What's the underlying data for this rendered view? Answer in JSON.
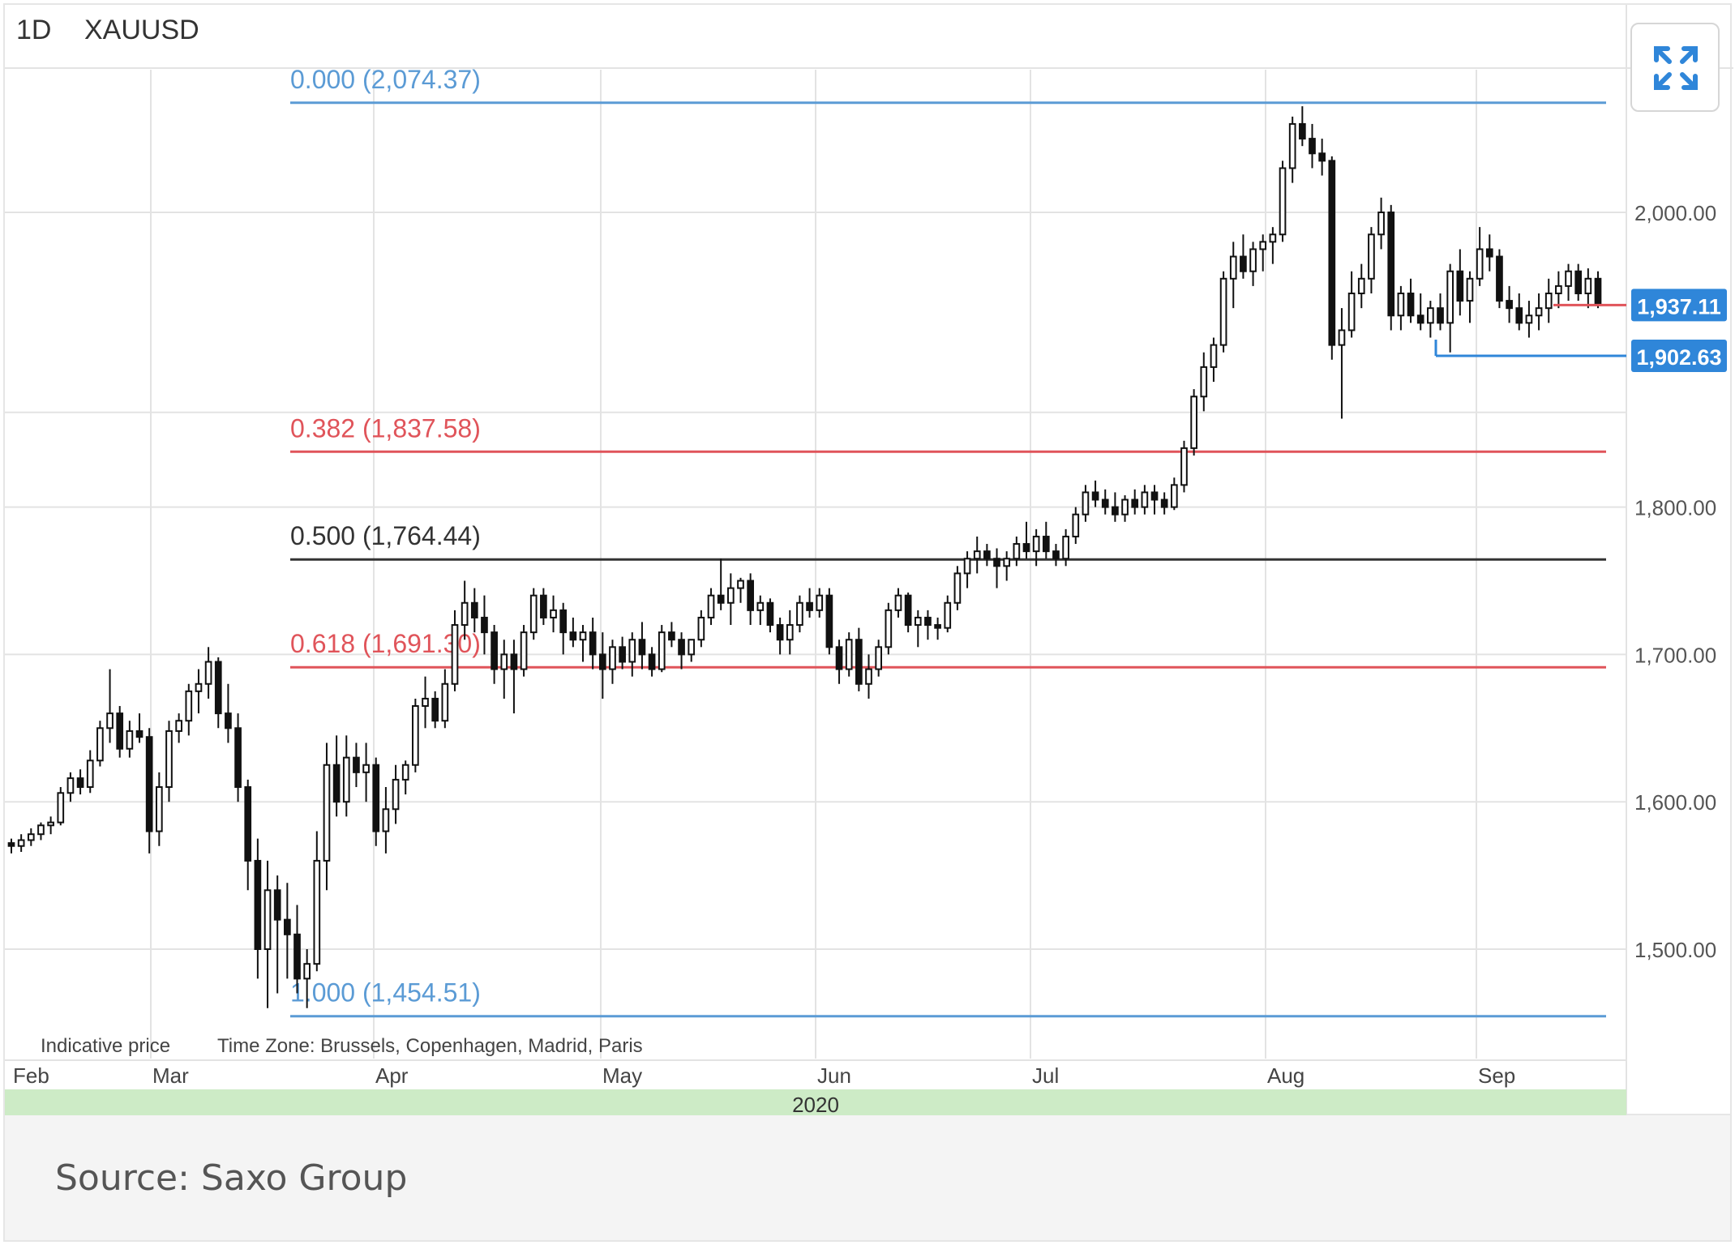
{
  "colors": {
    "grid": "#e3e3e3",
    "candle": "#111111",
    "fib_blue": "#5b9bd5",
    "fib_red": "#e0545a",
    "fib_black": "#333333",
    "badge_blue": "#2f86d9",
    "year_band": "#cdebc6",
    "expand_icon": "#2f86d9"
  },
  "header": {
    "timeframe": "1D",
    "symbol": "XAUUSD"
  },
  "expand_button": {
    "icon": "expand-arrows-icon"
  },
  "footnote": {
    "indicative": "Indicative price",
    "timezone": "Time Zone: Brussels, Copenhagen, Madrid, Paris"
  },
  "caption": "Source: Saxo Group",
  "chart_data": {
    "type": "candlestick",
    "symbol": "XAUUSD",
    "timeframe": "1D",
    "year_label": "2020",
    "x_tick_labels": [
      "Feb",
      "Mar",
      "Apr",
      "May",
      "Jun",
      "Jul",
      "Aug",
      "Sep"
    ],
    "y_tick_labels": [
      "2,000.00",
      "1,800.00",
      "1,700.00",
      "1,600.00",
      "1,500.00"
    ],
    "ylim": [
      1420,
      2100
    ],
    "grid": true,
    "fib_levels": [
      {
        "label": "0.000 (2,074.37)",
        "value": 2074.37,
        "color": "#5b9bd5"
      },
      {
        "label": "0.382 (1,837.58)",
        "value": 1837.58,
        "color": "#e0545a"
      },
      {
        "label": "0.500 (1,764.44)",
        "value": 1764.44,
        "color": "#333333"
      },
      {
        "label": "0.618 (1,691.30)",
        "value": 1691.3,
        "color": "#e0545a"
      },
      {
        "label": "1.000 (1,454.51)",
        "value": 1454.51,
        "color": "#5b9bd5"
      }
    ],
    "price_badges": [
      {
        "label": "1,937.11",
        "value": 1937.11,
        "color": "#2f86d9"
      },
      {
        "label": "1,902.63",
        "value": 1902.63,
        "color": "#2f86d9"
      }
    ],
    "ohlc": [
      [
        1572,
        1575,
        1565,
        1570
      ],
      [
        1570,
        1578,
        1566,
        1574
      ],
      [
        1574,
        1582,
        1570,
        1578
      ],
      [
        1578,
        1586,
        1574,
        1584
      ],
      [
        1584,
        1590,
        1578,
        1586
      ],
      [
        1586,
        1610,
        1584,
        1606
      ],
      [
        1606,
        1620,
        1600,
        1616
      ],
      [
        1616,
        1622,
        1605,
        1610
      ],
      [
        1610,
        1635,
        1606,
        1628
      ],
      [
        1628,
        1655,
        1624,
        1650
      ],
      [
        1650,
        1690,
        1640,
        1660
      ],
      [
        1660,
        1665,
        1630,
        1636
      ],
      [
        1636,
        1655,
        1630,
        1648
      ],
      [
        1648,
        1660,
        1640,
        1644
      ],
      [
        1644,
        1650,
        1565,
        1580
      ],
      [
        1580,
        1620,
        1570,
        1610
      ],
      [
        1610,
        1655,
        1600,
        1648
      ],
      [
        1648,
        1660,
        1640,
        1655
      ],
      [
        1655,
        1680,
        1645,
        1675
      ],
      [
        1675,
        1690,
        1660,
        1680
      ],
      [
        1680,
        1705,
        1670,
        1695
      ],
      [
        1695,
        1698,
        1650,
        1660
      ],
      [
        1660,
        1680,
        1640,
        1650
      ],
      [
        1650,
        1660,
        1600,
        1610
      ],
      [
        1610,
        1615,
        1540,
        1560
      ],
      [
        1560,
        1575,
        1480,
        1500
      ],
      [
        1500,
        1560,
        1460,
        1540
      ],
      [
        1540,
        1550,
        1470,
        1520
      ],
      [
        1520,
        1545,
        1480,
        1510
      ],
      [
        1510,
        1530,
        1470,
        1480
      ],
      [
        1480,
        1500,
        1460,
        1490
      ],
      [
        1490,
        1580,
        1485,
        1560
      ],
      [
        1560,
        1640,
        1540,
        1625
      ],
      [
        1625,
        1645,
        1590,
        1600
      ],
      [
        1600,
        1645,
        1590,
        1630
      ],
      [
        1630,
        1640,
        1610,
        1620
      ],
      [
        1620,
        1640,
        1600,
        1625
      ],
      [
        1625,
        1630,
        1570,
        1580
      ],
      [
        1580,
        1610,
        1565,
        1595
      ],
      [
        1595,
        1625,
        1585,
        1615
      ],
      [
        1615,
        1628,
        1605,
        1625
      ],
      [
        1625,
        1670,
        1620,
        1665
      ],
      [
        1665,
        1685,
        1650,
        1670
      ],
      [
        1670,
        1675,
        1650,
        1655
      ],
      [
        1655,
        1690,
        1650,
        1680
      ],
      [
        1680,
        1730,
        1675,
        1720
      ],
      [
        1720,
        1750,
        1710,
        1735
      ],
      [
        1735,
        1745,
        1715,
        1725
      ],
      [
        1725,
        1740,
        1700,
        1715
      ],
      [
        1715,
        1720,
        1680,
        1690
      ],
      [
        1690,
        1710,
        1670,
        1700
      ],
      [
        1700,
        1710,
        1660,
        1690
      ],
      [
        1690,
        1720,
        1685,
        1715
      ],
      [
        1715,
        1745,
        1710,
        1740
      ],
      [
        1740,
        1745,
        1720,
        1725
      ],
      [
        1725,
        1740,
        1715,
        1730
      ],
      [
        1730,
        1735,
        1700,
        1715
      ],
      [
        1715,
        1725,
        1705,
        1710
      ],
      [
        1710,
        1720,
        1695,
        1715
      ],
      [
        1715,
        1725,
        1690,
        1700
      ],
      [
        1700,
        1715,
        1670,
        1690
      ],
      [
        1690,
        1710,
        1680,
        1705
      ],
      [
        1705,
        1712,
        1690,
        1695
      ],
      [
        1695,
        1715,
        1685,
        1710
      ],
      [
        1710,
        1722,
        1690,
        1700
      ],
      [
        1700,
        1705,
        1685,
        1690
      ],
      [
        1690,
        1720,
        1688,
        1715
      ],
      [
        1715,
        1722,
        1705,
        1710
      ],
      [
        1710,
        1715,
        1690,
        1700
      ],
      [
        1700,
        1710,
        1695,
        1710
      ],
      [
        1710,
        1730,
        1705,
        1725
      ],
      [
        1725,
        1745,
        1720,
        1740
      ],
      [
        1740,
        1765,
        1730,
        1735
      ],
      [
        1735,
        1755,
        1720,
        1745
      ],
      [
        1745,
        1752,
        1735,
        1750
      ],
      [
        1750,
        1755,
        1720,
        1730
      ],
      [
        1730,
        1740,
        1720,
        1735
      ],
      [
        1735,
        1738,
        1715,
        1720
      ],
      [
        1720,
        1725,
        1700,
        1710
      ],
      [
        1710,
        1730,
        1700,
        1720
      ],
      [
        1720,
        1740,
        1715,
        1735
      ],
      [
        1735,
        1745,
        1725,
        1730
      ],
      [
        1730,
        1745,
        1725,
        1740
      ],
      [
        1740,
        1745,
        1700,
        1705
      ],
      [
        1705,
        1710,
        1680,
        1690
      ],
      [
        1690,
        1715,
        1685,
        1710
      ],
      [
        1710,
        1718,
        1675,
        1680
      ],
      [
        1680,
        1700,
        1670,
        1690
      ],
      [
        1690,
        1710,
        1685,
        1705
      ],
      [
        1705,
        1735,
        1700,
        1730
      ],
      [
        1730,
        1745,
        1725,
        1740
      ],
      [
        1740,
        1742,
        1715,
        1720
      ],
      [
        1720,
        1730,
        1705,
        1725
      ],
      [
        1725,
        1730,
        1710,
        1720
      ],
      [
        1720,
        1725,
        1710,
        1718
      ],
      [
        1718,
        1740,
        1715,
        1735
      ],
      [
        1735,
        1760,
        1730,
        1755
      ],
      [
        1755,
        1770,
        1745,
        1765
      ],
      [
        1765,
        1780,
        1755,
        1770
      ],
      [
        1770,
        1775,
        1760,
        1765
      ],
      [
        1765,
        1772,
        1745,
        1760
      ],
      [
        1760,
        1770,
        1750,
        1765
      ],
      [
        1765,
        1780,
        1760,
        1775
      ],
      [
        1775,
        1790,
        1765,
        1770
      ],
      [
        1770,
        1785,
        1760,
        1780
      ],
      [
        1780,
        1790,
        1765,
        1770
      ],
      [
        1770,
        1775,
        1760,
        1765
      ],
      [
        1765,
        1785,
        1760,
        1780
      ],
      [
        1780,
        1800,
        1775,
        1795
      ],
      [
        1795,
        1815,
        1790,
        1810
      ],
      [
        1810,
        1818,
        1800,
        1805
      ],
      [
        1805,
        1812,
        1795,
        1800
      ],
      [
        1800,
        1810,
        1790,
        1795
      ],
      [
        1795,
        1808,
        1790,
        1805
      ],
      [
        1805,
        1812,
        1795,
        1800
      ],
      [
        1800,
        1815,
        1795,
        1810
      ],
      [
        1810,
        1815,
        1795,
        1805
      ],
      [
        1805,
        1810,
        1795,
        1800
      ],
      [
        1800,
        1820,
        1798,
        1815
      ],
      [
        1815,
        1845,
        1810,
        1840
      ],
      [
        1840,
        1880,
        1835,
        1875
      ],
      [
        1875,
        1905,
        1865,
        1895
      ],
      [
        1895,
        1915,
        1885,
        1910
      ],
      [
        1910,
        1960,
        1905,
        1955
      ],
      [
        1955,
        1980,
        1935,
        1970
      ],
      [
        1970,
        1985,
        1955,
        1960
      ],
      [
        1960,
        1980,
        1950,
        1975
      ],
      [
        1975,
        1985,
        1960,
        1980
      ],
      [
        1980,
        1990,
        1965,
        1985
      ],
      [
        1985,
        2035,
        1980,
        2030
      ],
      [
        2030,
        2065,
        2020,
        2060
      ],
      [
        2060,
        2072,
        2045,
        2050
      ],
      [
        2050,
        2060,
        2030,
        2040
      ],
      [
        2040,
        2050,
        2025,
        2035
      ],
      [
        2035,
        2038,
        1900,
        1910
      ],
      [
        1910,
        1935,
        1860,
        1920
      ],
      [
        1920,
        1960,
        1915,
        1945
      ],
      [
        1945,
        1965,
        1935,
        1955
      ],
      [
        1955,
        1990,
        1945,
        1985
      ],
      [
        1985,
        2010,
        1975,
        2000
      ],
      [
        2000,
        2005,
        1920,
        1930
      ],
      [
        1930,
        1950,
        1920,
        1945
      ],
      [
        1945,
        1955,
        1925,
        1930
      ],
      [
        1930,
        1945,
        1920,
        1925
      ],
      [
        1925,
        1940,
        1915,
        1935
      ],
      [
        1935,
        1945,
        1920,
        1925
      ],
      [
        1925,
        1965,
        1905,
        1960
      ],
      [
        1960,
        1975,
        1930,
        1940
      ],
      [
        1940,
        1960,
        1925,
        1955
      ],
      [
        1955,
        1990,
        1950,
        1975
      ],
      [
        1975,
        1985,
        1960,
        1970
      ],
      [
        1970,
        1975,
        1935,
        1940
      ],
      [
        1940,
        1950,
        1925,
        1935
      ],
      [
        1935,
        1945,
        1920,
        1925
      ],
      [
        1925,
        1940,
        1915,
        1930
      ],
      [
        1930,
        1945,
        1920,
        1935
      ],
      [
        1935,
        1955,
        1925,
        1945
      ],
      [
        1945,
        1960,
        1935,
        1950
      ],
      [
        1950,
        1965,
        1940,
        1960
      ],
      [
        1960,
        1965,
        1940,
        1945
      ],
      [
        1945,
        1962,
        1935,
        1955
      ],
      [
        1955,
        1960,
        1935,
        1937
      ]
    ]
  }
}
